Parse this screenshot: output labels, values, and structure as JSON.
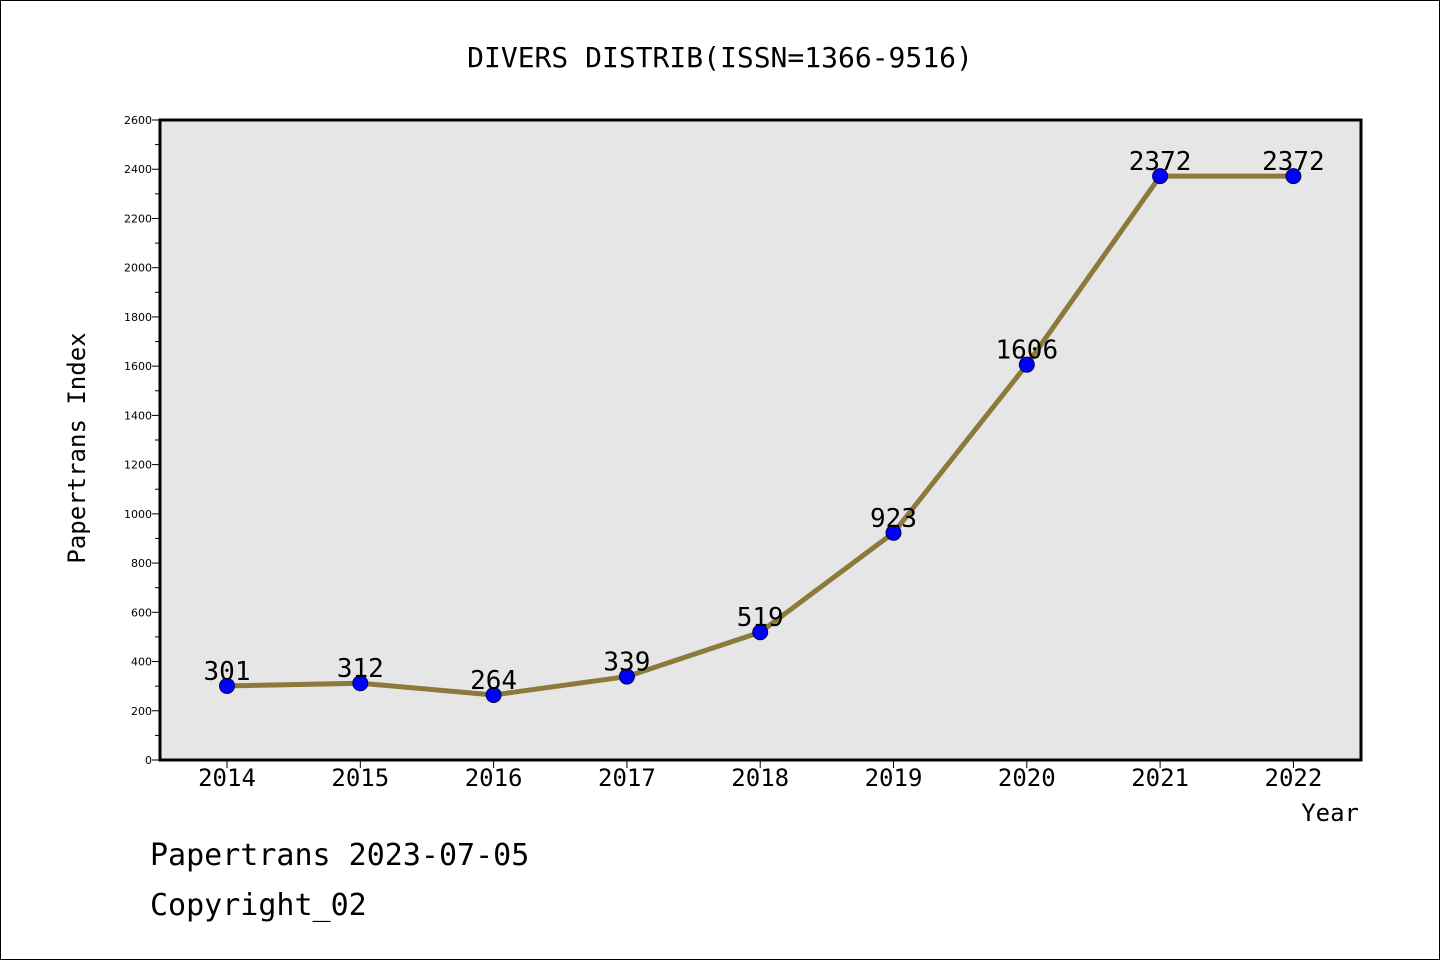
{
  "chart_data": {
    "type": "line",
    "title": "DIVERS DISTRIB(ISSN=1366-9516)",
    "xlabel": "Year",
    "ylabel": "Papertrans Index",
    "categories": [
      "2014",
      "2015",
      "2016",
      "2017",
      "2018",
      "2019",
      "2020",
      "2021",
      "2022"
    ],
    "series": [
      {
        "values": [
          301,
          312,
          264,
          339,
          519,
          923,
          1606,
          2372,
          2372
        ]
      }
    ],
    "data_labels": [
      "301",
      "312",
      "264",
      "339",
      "519",
      "923",
      "1606",
      "2372",
      "2372"
    ],
    "ylim": [
      0,
      2600
    ],
    "yticks": [
      "0",
      "200",
      "400",
      "600",
      "800",
      "1000",
      "1200",
      "1400",
      "1600",
      "1800",
      "2000",
      "2200",
      "2400",
      "2600"
    ],
    "grid": false,
    "colors": {
      "line": "#8c7a3c",
      "marker": "#0000ff",
      "plot_background": "#e6e6e6"
    }
  },
  "footer": {
    "line1": "Papertrans 2023-07-05",
    "line2": "Copyright_02"
  }
}
